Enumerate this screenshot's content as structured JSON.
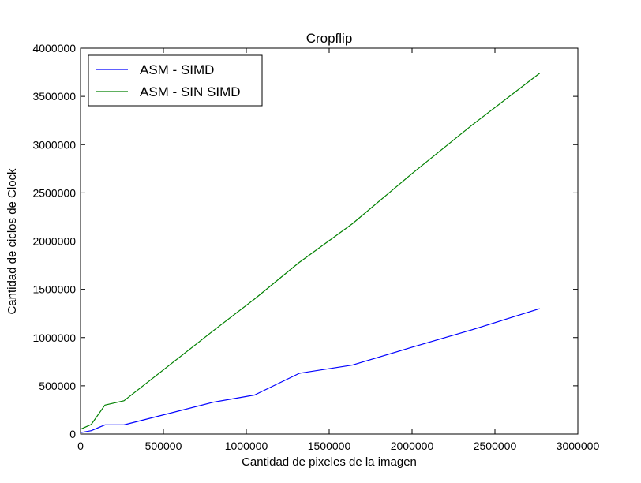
{
  "chart_data": {
    "type": "line",
    "title": "Cropflip",
    "xlabel": "Cantidad de pixeles de la imagen",
    "ylabel": "Cantidad de ciclos de Clock",
    "xlim": [
      0,
      3000000
    ],
    "ylim": [
      0,
      4000000
    ],
    "x_ticks": [
      "0",
      "500000",
      "1000000",
      "1500000",
      "2000000",
      "2500000",
      "3000000"
    ],
    "y_ticks": [
      "0",
      "500000",
      "1000000",
      "1500000",
      "2000000",
      "2500000",
      "3000000",
      "3500000",
      "4000000"
    ],
    "grid": false,
    "legend_position": "top-left",
    "series": [
      {
        "name": "ASM - SIMD",
        "color": "#0000ff",
        "x": [
          0,
          65000,
          147000,
          262000,
          800000,
          1050000,
          1320000,
          1640000,
          2000000,
          2360000,
          2770000
        ],
        "y": [
          15000,
          35000,
          95000,
          95000,
          330000,
          405000,
          630000,
          715000,
          900000,
          1080000,
          1300000
        ]
      },
      {
        "name": "ASM - SIN SIMD",
        "color": "#008000",
        "x": [
          0,
          65000,
          147000,
          262000,
          800000,
          1050000,
          1320000,
          1640000,
          2000000,
          2360000,
          2770000
        ],
        "y": [
          50000,
          100000,
          300000,
          345000,
          1070000,
          1400000,
          1780000,
          2180000,
          2700000,
          3200000,
          3740000
        ]
      }
    ]
  }
}
